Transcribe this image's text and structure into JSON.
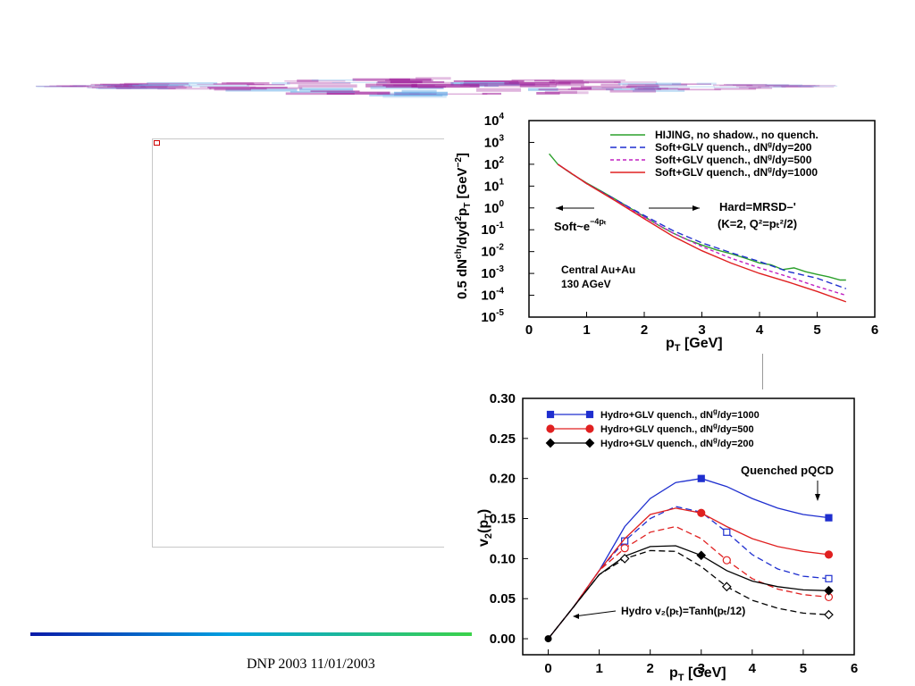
{
  "footer": {
    "text": "DNP 2003 11/01/2003"
  },
  "colors": {
    "banner": "#a0209a",
    "footline_start": "#0a1aa8",
    "footline_end": "#3bd24a"
  },
  "chart_data": [
    {
      "type": "line",
      "xlabel": "p_T [GeV]",
      "ylabel": "0.5 dN^ch/dyd^2p_T [GeV^-2]",
      "yscale": "log",
      "xlim": [
        0,
        6
      ],
      "ylim": [
        1e-05,
        10000.0
      ],
      "x_ticks": [
        "0",
        "1",
        "2",
        "3",
        "4",
        "5",
        "6"
      ],
      "y_ticks": [
        "10^-5",
        "10^-4",
        "10^-3",
        "10^-2",
        "10^-1",
        "10^0",
        "10^1",
        "10^2",
        "10^3",
        "10^4"
      ],
      "legend_position": "top-right",
      "series": [
        {
          "name": "HIJING, no shadow., no quench.",
          "color": "#2ca02c",
          "dash": "solid",
          "x": [
            0.35,
            0.5,
            0.75,
            1.0,
            1.25,
            1.5,
            1.75,
            2.0,
            2.25,
            2.5,
            2.75,
            3.0,
            3.25,
            3.5,
            3.75,
            4.0,
            4.2,
            4.4,
            4.6,
            4.8,
            5.0,
            5.2,
            5.4,
            5.5
          ],
          "y": [
            300,
            100,
            35,
            14,
            6,
            2.5,
            1.0,
            0.4,
            0.16,
            0.07,
            0.035,
            0.02,
            0.012,
            0.008,
            0.005,
            0.003,
            0.0025,
            0.0015,
            0.0018,
            0.0012,
            0.0009,
            0.0007,
            0.0005,
            0.0005
          ]
        },
        {
          "name": "Soft+GLV quench., dN^g/dy=200",
          "color": "#1f2fcf",
          "dash": "long",
          "x": [
            0.5,
            1.0,
            1.5,
            2.0,
            2.5,
            3.0,
            3.5,
            4.0,
            4.5,
            5.0,
            5.5
          ],
          "y": [
            100,
            13,
            2.4,
            0.45,
            0.09,
            0.025,
            0.009,
            0.0035,
            0.0012,
            0.0006,
            0.0002
          ]
        },
        {
          "name": "Soft+GLV quench., dN^g/dy=500",
          "color": "#c020c0",
          "dash": "short",
          "x": [
            0.5,
            1.0,
            1.5,
            2.0,
            2.5,
            3.0,
            3.5,
            4.0,
            4.5,
            5.0,
            5.5
          ],
          "y": [
            100,
            13,
            2.2,
            0.38,
            0.07,
            0.017,
            0.005,
            0.0018,
            0.0007,
            0.00025,
            0.0001
          ]
        },
        {
          "name": "Soft+GLV quench., dN^g/dy=1000",
          "color": "#e02020",
          "dash": "solid",
          "x": [
            0.5,
            1.0,
            1.5,
            2.0,
            2.5,
            3.0,
            3.5,
            4.0,
            4.5,
            5.0,
            5.5
          ],
          "y": [
            100,
            13,
            2.1,
            0.32,
            0.05,
            0.011,
            0.003,
            0.001,
            0.0004,
            0.00015,
            5e-05
          ]
        }
      ],
      "annotations": {
        "hard": "Hard=MRSD–'",
        "hard_params": "(K=2, Q²=pₜ²/2)",
        "soft": "Soft~e",
        "soft_exp": "−4pₜ",
        "system": "Central Au+Au",
        "energy": "130 AGeV"
      }
    },
    {
      "type": "line",
      "xlabel": "p_T [GeV]",
      "ylabel": "v_2(p_T)",
      "xlim": [
        -0.5,
        6
      ],
      "ylim": [
        -0.02,
        0.3
      ],
      "x_ticks": [
        "0",
        "1",
        "2",
        "3",
        "4",
        "5",
        "6"
      ],
      "y_ticks": [
        "0.00",
        "0.05",
        "0.10",
        "0.15",
        "0.20",
        "0.25",
        "0.30"
      ],
      "legend_position": "top-left",
      "series": [
        {
          "name": "Hydro+GLV quench., dN^g/dy=1000",
          "color": "#1f2fcf",
          "dash": "solid",
          "marker": "square-filled",
          "x": [
            0,
            0.5,
            1.0,
            1.5,
            2.0,
            2.5,
            3.0,
            3.5,
            4.0,
            4.5,
            5.0,
            5.5
          ],
          "y": [
            0,
            0.04,
            0.085,
            0.14,
            0.175,
            0.195,
            0.2,
            0.19,
            0.175,
            0.163,
            0.155,
            0.151
          ]
        },
        {
          "name": "",
          "color": "#1f2fcf",
          "dash": "long",
          "marker": "square-open",
          "x": [
            0,
            0.5,
            1.0,
            1.5,
            2.0,
            2.5,
            3.0,
            3.5,
            4.0,
            4.5,
            5.0,
            5.5
          ],
          "y": [
            0,
            0.04,
            0.085,
            0.122,
            0.15,
            0.165,
            0.158,
            0.133,
            0.105,
            0.087,
            0.078,
            0.075
          ]
        },
        {
          "name": "Hydro+GLV quench., dN^g/dy=500",
          "color": "#e02020",
          "dash": "solid",
          "marker": "circle-filled",
          "x": [
            0,
            0.5,
            1.0,
            1.5,
            2.0,
            2.5,
            3.0,
            3.5,
            4.0,
            4.5,
            5.0,
            5.5
          ],
          "y": [
            0,
            0.04,
            0.085,
            0.125,
            0.155,
            0.163,
            0.157,
            0.14,
            0.125,
            0.115,
            0.109,
            0.105
          ]
        },
        {
          "name": "",
          "color": "#e02020",
          "dash": "long",
          "marker": "circle-open",
          "x": [
            0,
            0.5,
            1.0,
            1.5,
            2.0,
            2.5,
            3.0,
            3.5,
            4.0,
            4.5,
            5.0,
            5.5
          ],
          "y": [
            0,
            0.04,
            0.085,
            0.113,
            0.133,
            0.14,
            0.125,
            0.098,
            0.075,
            0.062,
            0.055,
            0.052
          ]
        },
        {
          "name": "Hydro+GLV quench., dN^g/dy=200",
          "color": "#000000",
          "dash": "solid",
          "marker": "diamond-filled",
          "x": [
            0,
            0.5,
            1.0,
            1.5,
            2.0,
            2.5,
            3.0,
            3.5,
            4.0,
            4.5,
            5.0,
            5.5
          ],
          "y": [
            0,
            0.04,
            0.08,
            0.103,
            0.115,
            0.116,
            0.104,
            0.085,
            0.072,
            0.065,
            0.061,
            0.06
          ]
        },
        {
          "name": "",
          "color": "#000000",
          "dash": "long",
          "marker": "diamond-open",
          "x": [
            0,
            0.5,
            1.0,
            1.5,
            2.0,
            2.5,
            3.0,
            3.5,
            4.0,
            4.5,
            5.0,
            5.5
          ],
          "y": [
            0,
            0.04,
            0.08,
            0.1,
            0.11,
            0.109,
            0.09,
            0.065,
            0.048,
            0.038,
            0.032,
            0.03
          ]
        }
      ],
      "annotations": {
        "quenched": "Quenched  pQCD",
        "hydro": "Hydro v₂(pₜ)=Tanh(pₜ/12)"
      }
    }
  ]
}
